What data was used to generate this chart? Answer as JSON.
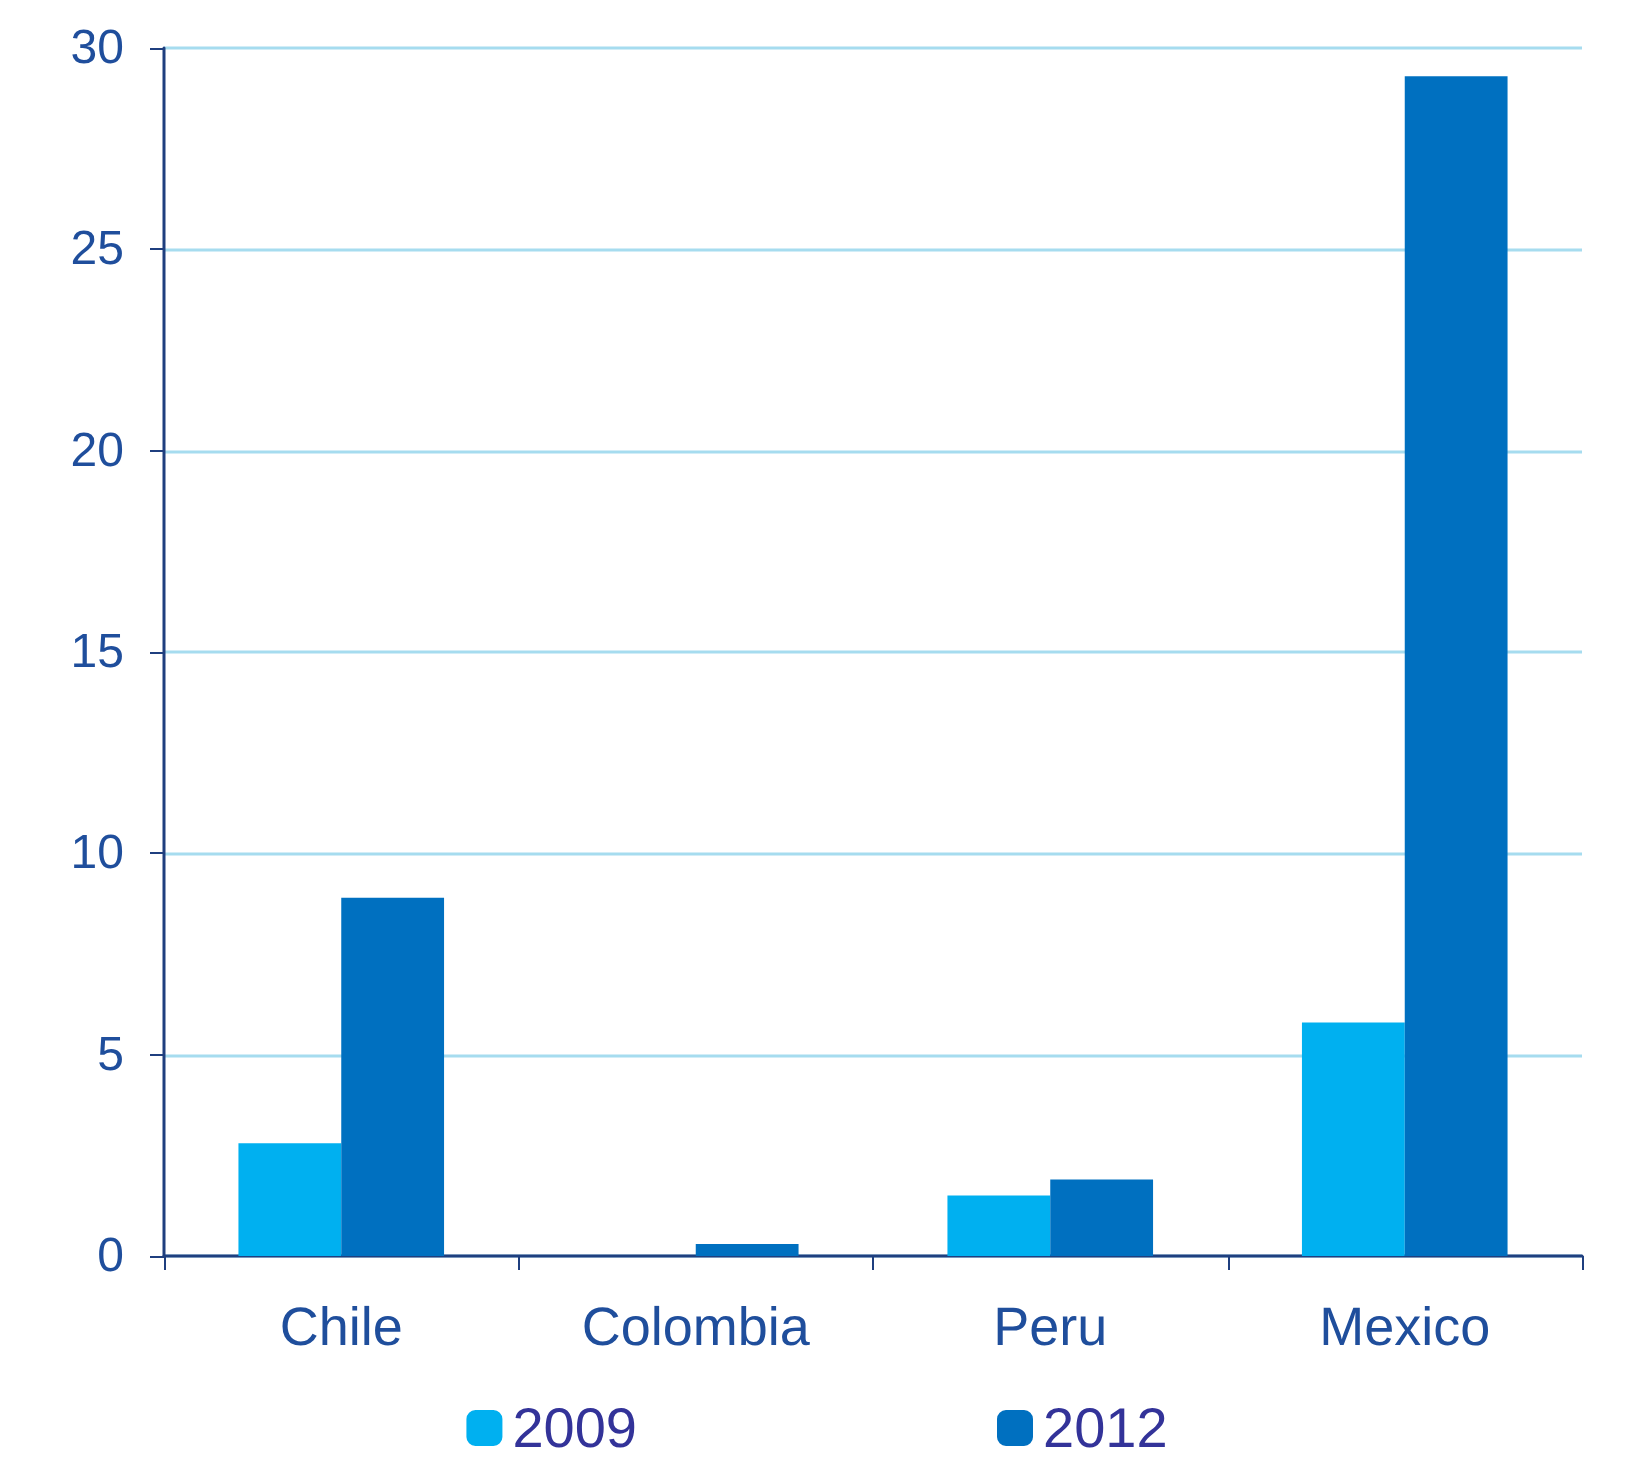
{
  "chart_data": {
    "type": "bar",
    "categories": [
      "Chile",
      "Colombia",
      "Peru",
      "Mexico"
    ],
    "series": [
      {
        "name": "2009",
        "color": "#00b0f0",
        "values": [
          2.8,
          0,
          1.5,
          5.8
        ]
      },
      {
        "name": "2012",
        "color": "#0070c0",
        "values": [
          8.9,
          0.3,
          1.9,
          29.3
        ]
      }
    ],
    "ylim": [
      0,
      30
    ],
    "yticks": [
      0,
      5,
      10,
      15,
      20,
      25,
      30
    ],
    "grid": "y",
    "legend": "bottom"
  }
}
